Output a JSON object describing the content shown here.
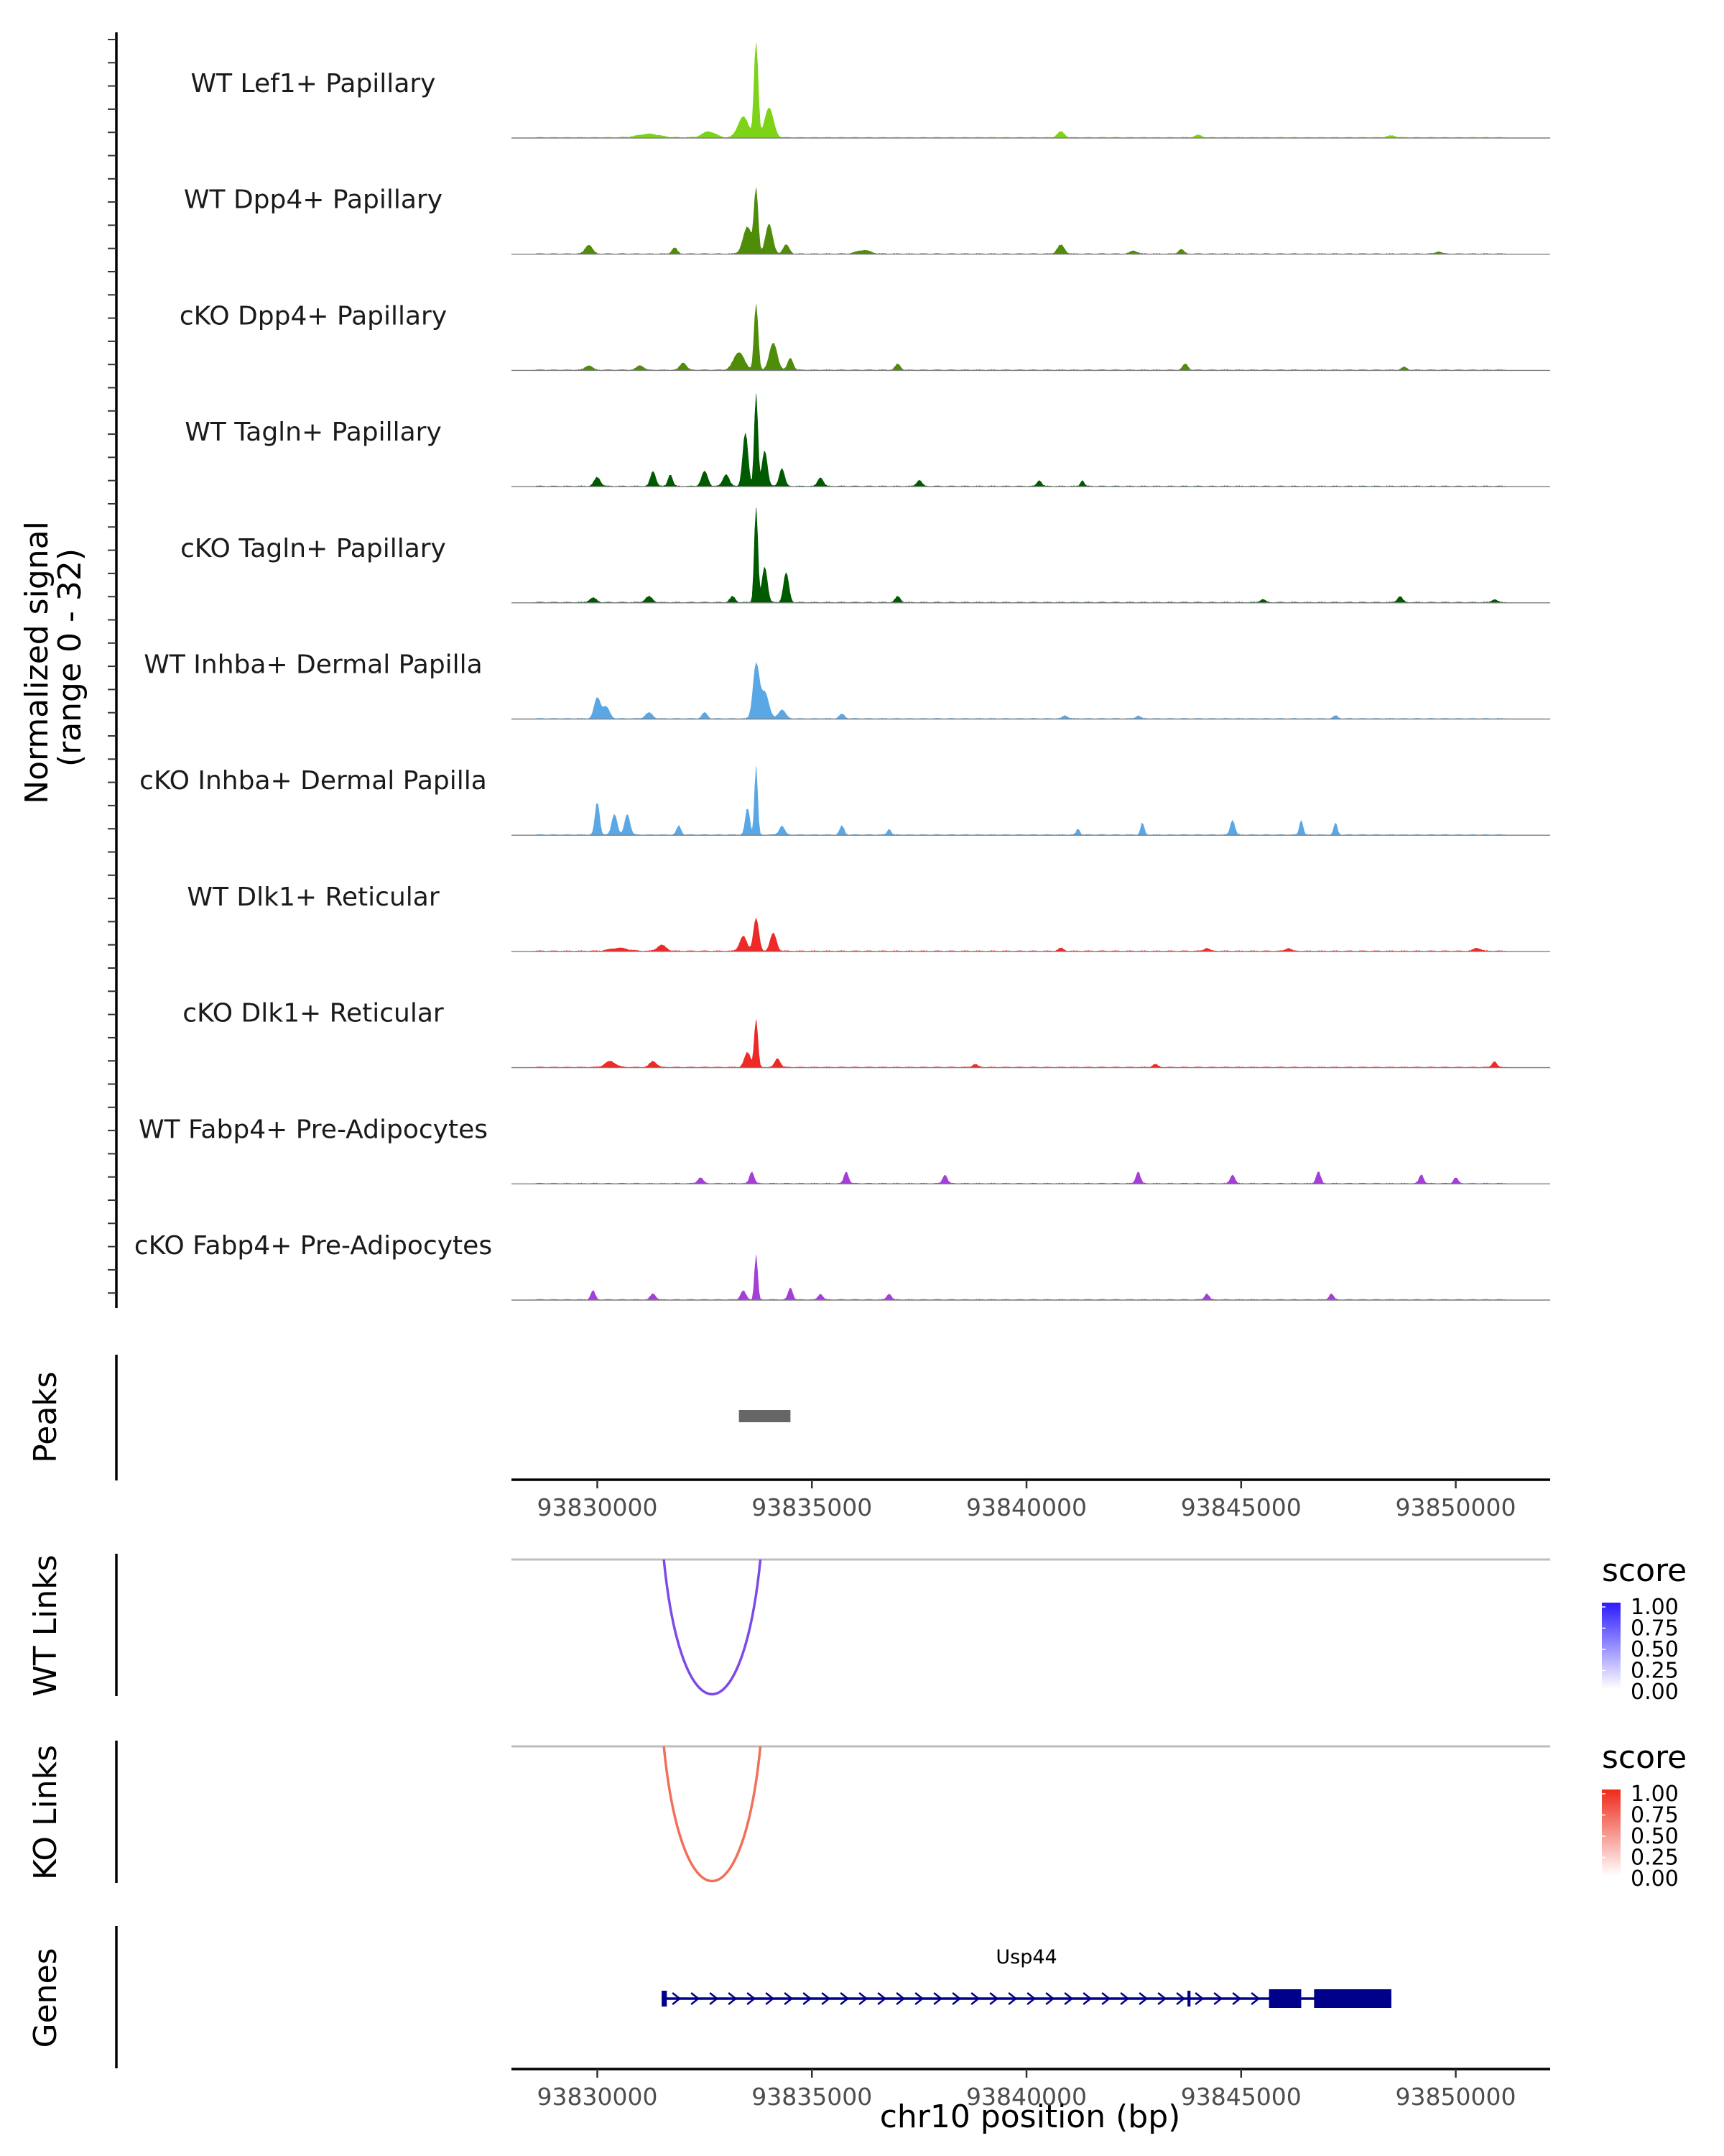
{
  "chart_data": {
    "type": "area",
    "title": "",
    "xlabel": "chr10 position (bp)",
    "x_ticks": [
      93830000,
      93835000,
      93840000,
      93845000,
      93850000
    ],
    "x_range": [
      93828000,
      93852200
    ],
    "coverage_axis_title_line1": "Normalized signal",
    "coverage_axis_title_line2": "(range 0 - 32)",
    "y_range": [
      0,
      32
    ],
    "coverage_tracks": [
      {
        "name": "WT Lef1+ Papillary",
        "color": "#7cd317",
        "peaks": [
          [
            93833700,
            32,
            45
          ],
          [
            93833400,
            7,
            120
          ],
          [
            93834000,
            10,
            100
          ],
          [
            93832600,
            2,
            150
          ],
          [
            93831200,
            1.2,
            250
          ],
          [
            93840800,
            2,
            80
          ],
          [
            93844000,
            0.8,
            80
          ],
          [
            93848500,
            0.6,
            100
          ]
        ]
      },
      {
        "name": "WT Dpp4+ Papillary",
        "color": "#4e8c0a",
        "peaks": [
          [
            93833700,
            21,
            45
          ],
          [
            93833500,
            9,
            100
          ],
          [
            93834000,
            10,
            80
          ],
          [
            93834400,
            3,
            70
          ],
          [
            93829800,
            3,
            80
          ],
          [
            93831800,
            2,
            60
          ],
          [
            93836200,
            1.2,
            150
          ],
          [
            93840800,
            3,
            80
          ],
          [
            93842500,
            1,
            80
          ],
          [
            93843600,
            1.5,
            60
          ],
          [
            93849600,
            0.8,
            60
          ]
        ]
      },
      {
        "name": "cKO Dpp4+ Papillary",
        "color": "#4e8c0a",
        "peaks": [
          [
            93833700,
            22,
            45
          ],
          [
            93833300,
            6,
            120
          ],
          [
            93834100,
            9,
            90
          ],
          [
            93834500,
            4,
            60
          ],
          [
            93829800,
            1.5,
            80
          ],
          [
            93831000,
            1.5,
            80
          ],
          [
            93832000,
            2.5,
            70
          ],
          [
            93837000,
            2,
            60
          ],
          [
            93843700,
            2,
            60
          ],
          [
            93848800,
            1,
            60
          ]
        ]
      },
      {
        "name": "WT Tagln+ Papillary",
        "color": "#005a00",
        "peaks": [
          [
            93833700,
            31,
            40
          ],
          [
            93833450,
            18,
            60
          ],
          [
            93833900,
            12,
            60
          ],
          [
            93834300,
            6,
            60
          ],
          [
            93830000,
            3,
            70
          ],
          [
            93831300,
            5,
            60
          ],
          [
            93831700,
            4,
            50
          ],
          [
            93832500,
            5,
            70
          ],
          [
            93833000,
            4,
            70
          ],
          [
            93835200,
            3,
            60
          ],
          [
            93837500,
            2,
            60
          ],
          [
            93840300,
            2,
            50
          ],
          [
            93841300,
            2,
            40
          ]
        ]
      },
      {
        "name": "cKO Tagln+ Papillary",
        "color": "#005a00",
        "peaks": [
          [
            93833700,
            32,
            40
          ],
          [
            93833900,
            12,
            60
          ],
          [
            93834400,
            10,
            60
          ],
          [
            93829900,
            1.5,
            80
          ],
          [
            93831200,
            2,
            80
          ],
          [
            93833150,
            2,
            60
          ],
          [
            93837000,
            2,
            60
          ],
          [
            93845500,
            1,
            60
          ],
          [
            93848700,
            2,
            60
          ],
          [
            93850900,
            1,
            60
          ]
        ]
      },
      {
        "name": "WT Inhba+ Dermal Papilla",
        "color": "#5aa7e6",
        "peaks": [
          [
            93833700,
            18,
            70
          ],
          [
            93833900,
            9,
            90
          ],
          [
            93834300,
            3,
            80
          ],
          [
            93830000,
            7,
            70
          ],
          [
            93830200,
            4,
            80
          ],
          [
            93831200,
            2,
            80
          ],
          [
            93832500,
            2,
            60
          ],
          [
            93835700,
            1.5,
            60
          ],
          [
            93840900,
            1,
            60
          ],
          [
            93842600,
            1,
            50
          ],
          [
            93847200,
            1,
            50
          ]
        ]
      },
      {
        "name": "cKO Inhba+ Dermal Papilla",
        "color": "#5aa7e6",
        "peaks": [
          [
            93833700,
            23,
            35
          ],
          [
            93833500,
            9,
            50
          ],
          [
            93834300,
            3,
            60
          ],
          [
            93830000,
            11,
            50
          ],
          [
            93830400,
            7,
            60
          ],
          [
            93830700,
            7,
            60
          ],
          [
            93831900,
            3,
            50
          ],
          [
            93835700,
            3,
            50
          ],
          [
            93836800,
            2,
            40
          ],
          [
            93841200,
            2,
            40
          ],
          [
            93842700,
            4,
            40
          ],
          [
            93844800,
            5,
            50
          ],
          [
            93846400,
            5,
            40
          ],
          [
            93847200,
            4,
            40
          ]
        ]
      },
      {
        "name": "WT Dlk1+ Reticular",
        "color": "#ee2a28",
        "peaks": [
          [
            93833700,
            11,
            60
          ],
          [
            93833400,
            5,
            80
          ],
          [
            93834100,
            6,
            70
          ],
          [
            93831500,
            2,
            100
          ],
          [
            93830500,
            1,
            200
          ],
          [
            93840800,
            1,
            60
          ],
          [
            93844200,
            1,
            60
          ],
          [
            93846100,
            1,
            60
          ],
          [
            93850500,
            1,
            80
          ]
        ]
      },
      {
        "name": "cKO Dlk1+ Reticular",
        "color": "#ee2a28",
        "peaks": [
          [
            93833700,
            16,
            40
          ],
          [
            93833500,
            5,
            70
          ],
          [
            93834200,
            3,
            60
          ],
          [
            93830300,
            2,
            120
          ],
          [
            93831300,
            2,
            80
          ],
          [
            93838800,
            1,
            60
          ],
          [
            93843000,
            1,
            60
          ],
          [
            93850900,
            2,
            50
          ]
        ]
      },
      {
        "name": "WT Fabp4+ Pre-Adipocytes",
        "color": "#a43fd6",
        "peaks": [
          [
            93833600,
            4,
            50
          ],
          [
            93832400,
            2,
            60
          ],
          [
            93835800,
            4,
            50
          ],
          [
            93838100,
            3,
            50
          ],
          [
            93842600,
            4,
            50
          ],
          [
            93844800,
            3,
            50
          ],
          [
            93846800,
            4,
            50
          ],
          [
            93849200,
            3,
            50
          ],
          [
            93850000,
            2,
            50
          ]
        ]
      },
      {
        "name": "cKO Fabp4+ Pre-Adipocytes",
        "color": "#a43fd6",
        "peaks": [
          [
            93833700,
            15,
            35
          ],
          [
            93833400,
            3,
            60
          ],
          [
            93834500,
            4,
            50
          ],
          [
            93829900,
            3,
            50
          ],
          [
            93831300,
            2,
            60
          ],
          [
            93835200,
            2,
            50
          ],
          [
            93836800,
            2,
            50
          ],
          [
            93844200,
            2,
            50
          ],
          [
            93847100,
            2,
            50
          ]
        ]
      }
    ],
    "peaks_track": {
      "label": "Peaks",
      "regions": [
        [
          93833300,
          93834500
        ]
      ],
      "color": "#666666"
    },
    "link_tracks": [
      {
        "label": "WT Links",
        "start": 93831550,
        "end": 93833800,
        "score": 1.0,
        "color": "#7b4ae8",
        "legend_high": "#2b1bff",
        "legend_title": "score",
        "legend_ticks": [
          "1.00",
          "0.75",
          "0.50",
          "0.25",
          "0.00"
        ]
      },
      {
        "label": "KO Links",
        "start": 93831550,
        "end": 93833800,
        "score": 1.0,
        "color": "#f07058",
        "legend_high": "#ee2a1a",
        "legend_title": "score",
        "legend_ticks": [
          "1.00",
          "0.75",
          "0.50",
          "0.25",
          "0.00"
        ]
      }
    ],
    "genes_track": {
      "label": "Genes",
      "gene_name": "Usp44",
      "color": "#00008b",
      "start": 93831500,
      "end": 93848500,
      "exons": [
        [
          93831500,
          93831620
        ],
        [
          93843750,
          93843820
        ],
        [
          93845650,
          93846400
        ],
        [
          93846700,
          93848500
        ]
      ]
    }
  }
}
